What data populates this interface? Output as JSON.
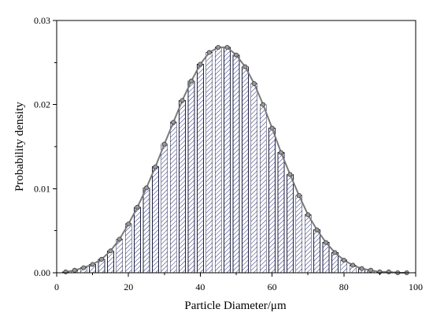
{
  "chart_data": {
    "type": "bar",
    "xlabel": "Particle Diameter/μm",
    "ylabel": "Probability density",
    "xlim": [
      0,
      100
    ],
    "ylim": [
      0,
      0.03
    ],
    "xticks": [
      0,
      20,
      40,
      60,
      80,
      100
    ],
    "xtick_labels": [
      "0",
      "20",
      "40",
      "60",
      "80",
      "100"
    ],
    "yticks": [
      0,
      0.01,
      0.02,
      0.03
    ],
    "ytick_labels": [
      "0.00",
      "0.01",
      "0.02",
      "0.03"
    ],
    "grid": false,
    "bar_width": 1.75,
    "x": [
      2.5,
      5,
      7.5,
      10,
      12.5,
      15,
      17.5,
      20,
      22.5,
      25,
      27.5,
      30,
      32.5,
      35,
      37.5,
      40,
      42.5,
      45,
      47.5,
      50,
      52.5,
      55,
      57.5,
      60,
      62.5,
      65,
      67.5,
      70,
      72.5,
      75,
      77.5,
      80,
      82.5,
      85,
      87.5,
      90,
      92.5,
      95,
      97.5
    ],
    "values": [
      0.0001,
      0.0003,
      0.0006,
      0.001,
      0.0016,
      0.0026,
      0.004,
      0.0058,
      0.0078,
      0.0101,
      0.0126,
      0.0153,
      0.0179,
      0.0205,
      0.0228,
      0.0248,
      0.0262,
      0.0268,
      0.0268,
      0.0259,
      0.0245,
      0.0225,
      0.02,
      0.0172,
      0.0143,
      0.0117,
      0.0092,
      0.0069,
      0.0051,
      0.0036,
      0.0024,
      0.0015,
      0.0009,
      0.0005,
      0.0003,
      0.0001,
      0.0001,
      0.0,
      0.0
    ],
    "colors": {
      "bar_fill": "#ffffff",
      "bar_edge": "#1f1f3f",
      "hatch": "#1e2b78",
      "curve": "#7a7a7a",
      "marker_fill": "#9a9a9a",
      "marker_edge": "#3a3a3a"
    }
  }
}
